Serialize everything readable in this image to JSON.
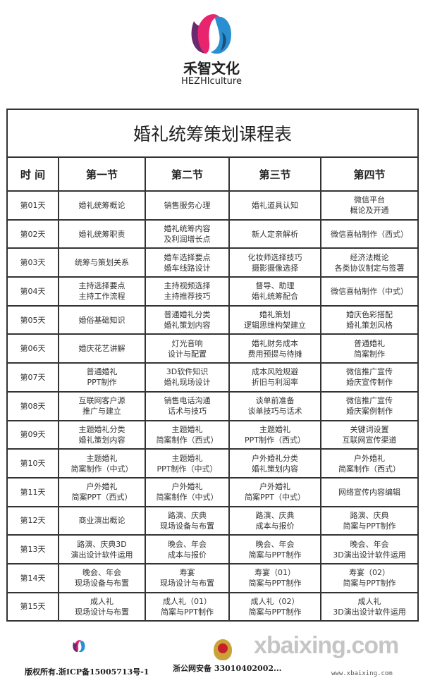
{
  "brand": {
    "name_cn": "禾智文化",
    "name_en": "HEZHIculture",
    "colors": {
      "pink": "#e8246e",
      "blue": "#2a8fd0",
      "purple": "#6a2a6e"
    }
  },
  "table": {
    "title": "婚礼统筹策划课程表",
    "headers": [
      "时 间",
      "第一节",
      "第二节",
      "第三节",
      "第四节"
    ],
    "rows": [
      [
        "第01天",
        "婚礼统筹概论",
        "销售服务心理",
        "婚礼道具认知",
        "微信平台\n概论及开通"
      ],
      [
        "第02天",
        "婚礼统筹职责",
        "婚礼统筹内容\n及利润增长点",
        "新人定亲解析",
        "微信喜帖制作（西式）"
      ],
      [
        "第03天",
        "统筹与策划关系",
        "婚车选择要点\n婚车线路设计",
        "化妆师选择技巧\n摄影摄像选择",
        "经济法概论\n各类协议制定与签署"
      ],
      [
        "第04天",
        "主持选择要点\n主持工作流程",
        "主持视频选择\n主持推荐技巧",
        "督导、助理\n婚礼统筹配合",
        "微信喜帖制作（中式）"
      ],
      [
        "第05天",
        "婚俗基础知识",
        "普通婚礼分类\n婚礼策划内容",
        "婚礼策划\n逻辑思维构架建立",
        "婚庆色彩搭配\n婚礼策划风格"
      ],
      [
        "第06天",
        "婚庆花艺讲解",
        "灯光音响\n设计与配置",
        "婚礼财务成本\n费用预提与待摊",
        "普通婚礼\n简案制作"
      ],
      [
        "第07天",
        "普通婚礼\nPPT制作",
        "3D软件知识\n婚礼现场设计",
        "成本风险规避\n折旧与利润率",
        "微信推广宣传\n婚庆宣传制作"
      ],
      [
        "第08天",
        "互联网客户源\n推广与建立",
        "销售电话沟通\n话术与技巧",
        "谈单前准备\n谈单技巧与话术",
        "微信推广宣传\n婚庆案例制作"
      ],
      [
        "第09天",
        "主题婚礼分类\n婚礼策划内容",
        "主题婚礼\n简案制作（西式）",
        "主题婚礼\nPPT制作（西式）",
        "关键词设置\n互联网宣传渠道"
      ],
      [
        "第10天",
        "主题婚礼\n简案制作（中式）",
        "主题婚礼\nPPT制作（中式）",
        "户外婚礼分类\n婚礼策划内容",
        "户外婚礼\n简案制作（西式）"
      ],
      [
        "第11天",
        "户外婚礼\n简案PPT（西式）",
        "户外婚礼\n简案制作（中式）",
        "户外婚礼\n简案PPT（中式）",
        "网络宣传内容编辑"
      ],
      [
        "第12天",
        "商业演出概论",
        "路演、庆典\n现场设备与布置",
        "路演、庆典\n成本与报价",
        "路演、庆典\n简案与PPT制作"
      ],
      [
        "第13天",
        "路演、庆典3D\n演出设计软件运用",
        "晚会、年会\n成本与报价",
        "晚会、年会\n简案与PPT制作",
        "晚会、年会\n3D演出设计软件运用"
      ],
      [
        "第14天",
        "晚会、年会\n现场设备与布置",
        "寿宴\n现场设计与布置",
        "寿宴（01）\n简案与PPT制作",
        "寿宴（02）\n简案与PPT制作"
      ],
      [
        "第15天",
        "成人礼\n现场设计与布置",
        "成人礼（01）\n简案与PPT制作",
        "成人礼（02）\n简案与PPT制作",
        "成人礼\n3D演出设计软件运用"
      ]
    ]
  },
  "footer": {
    "copyright": "版权所有.浙ICP备15005713号-1",
    "police": "浙公网安备 33010402002...",
    "watermark": "xbaixing.com",
    "watermark_url": "www.xbaixing.com"
  }
}
